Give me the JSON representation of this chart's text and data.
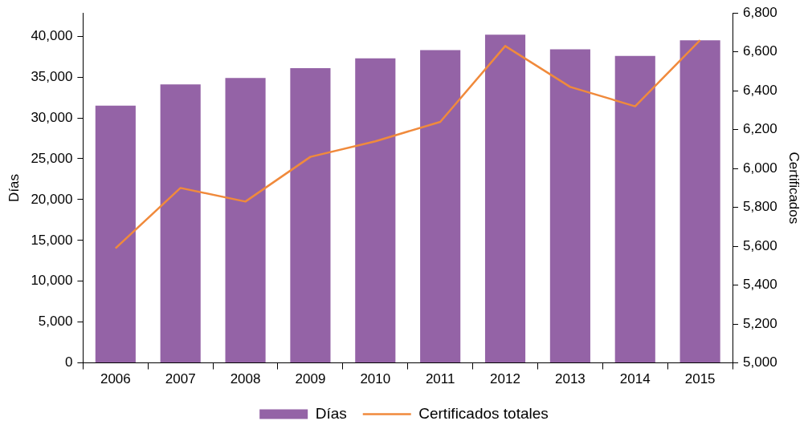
{
  "chart_data": {
    "type": "bar",
    "ylabel": "Días",
    "y2label": "Certificados",
    "categories": [
      "2006",
      "2007",
      "2008",
      "2009",
      "2010",
      "2011",
      "2012",
      "2013",
      "2014",
      "2015"
    ],
    "series": [
      {
        "name": "Días",
        "color": "#9463a6",
        "values": [
          31500,
          34100,
          34900,
          36100,
          37300,
          38300,
          40200,
          38400,
          37600,
          39500
        ]
      },
      {
        "name": "Certificados totales",
        "type": "line",
        "axis": "y2",
        "color": "#f08a3c",
        "values": [
          5590,
          5900,
          5830,
          6060,
          6140,
          6240,
          6630,
          6420,
          6320,
          6660
        ]
      }
    ],
    "ylim": [
      0,
      42850
    ],
    "yticks": [
      0,
      {
        "value": 5000,
        "label": "5,000"
      },
      {
        "value": 10000,
        "label": "10,000"
      },
      {
        "value": 15000,
        "label": "15,000"
      },
      {
        "value": 20000,
        "label": "20,000"
      },
      {
        "value": 25000,
        "label": "25,000"
      },
      {
        "value": 30000,
        "label": "30,000"
      },
      {
        "value": 35000,
        "label": "35,000"
      },
      {
        "value": 40000,
        "label": "40,000"
      }
    ],
    "y2lim": [
      5000,
      6800
    ],
    "y2ticks": [
      {
        "value": 5000,
        "label": "5,000"
      },
      {
        "value": 5200,
        "label": "5,200"
      },
      {
        "value": 5400,
        "label": "5,400"
      },
      {
        "value": 5600,
        "label": "5,600"
      },
      {
        "value": 5800,
        "label": "5,800"
      },
      {
        "value": 6000,
        "label": "6,000"
      },
      {
        "value": 6200,
        "label": "6,200"
      },
      {
        "value": 6400,
        "label": "6,400"
      },
      {
        "value": 6600,
        "label": "6,600"
      },
      {
        "value": 6800,
        "label": "6,800"
      }
    ],
    "grid": false,
    "legend": "bottom",
    "marker": "none",
    "line_style": "solid"
  }
}
